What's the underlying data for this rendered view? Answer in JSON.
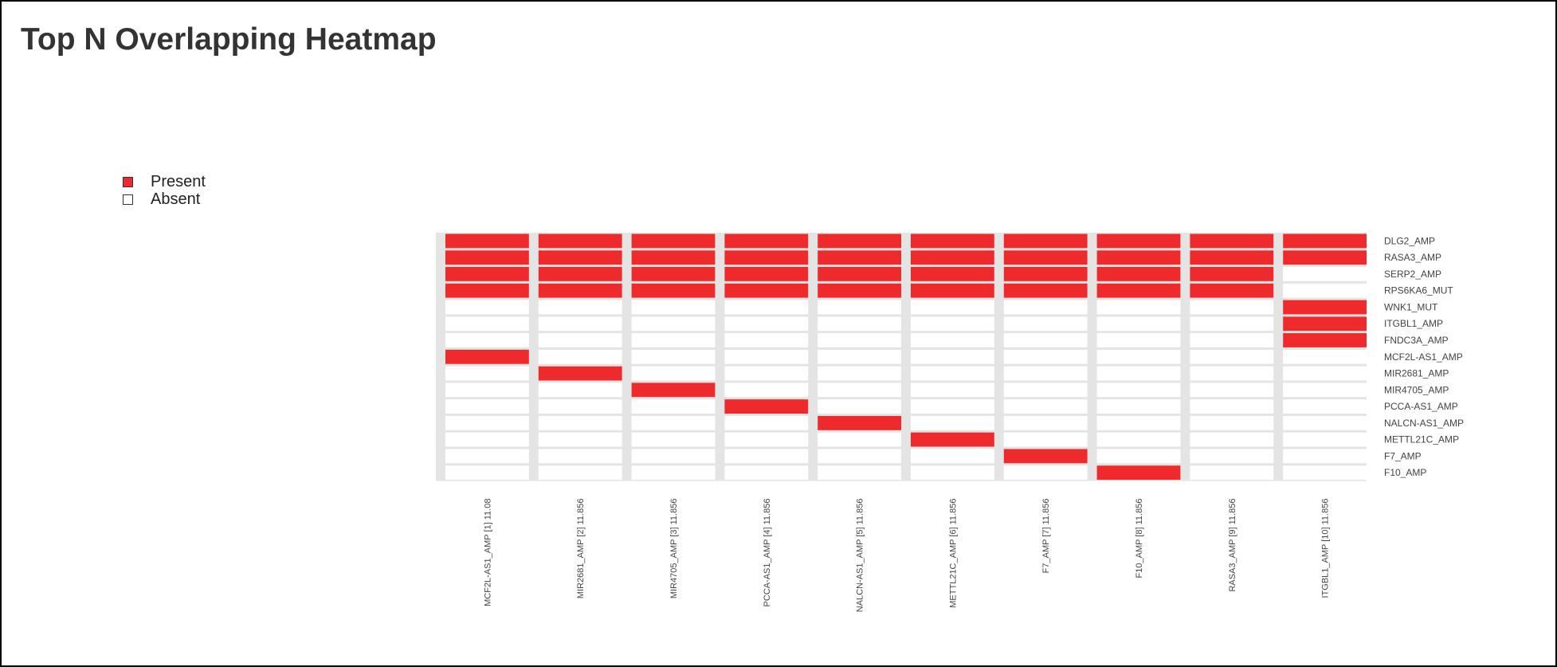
{
  "page": {
    "title": "Top N Overlapping Heatmap"
  },
  "legend": {
    "present_label": "Present",
    "absent_label": "Absent",
    "present_color": "#ee2a2d",
    "absent_color": "#ffffff"
  },
  "chart_data": {
    "type": "heatmap",
    "title": "Top N Overlapping Heatmap",
    "legend_position": "top-left",
    "colors": {
      "present": "#ee2a2d",
      "absent": "#ffffff",
      "separator": "#e4e4e4"
    },
    "columns": [
      "MCF2L-AS1_AMP [1] 11.08",
      "MIR2681_AMP [2] 11.856",
      "MIR4705_AMP [3] 11.856",
      "PCCA-AS1_AMP [4] 11.856",
      "NALCN-AS1_AMP [5] 11.856",
      "METTL21C_AMP [6] 11.856",
      "F7_AMP [7] 11.856",
      "F10_AMP [8] 11.856",
      "RASA3_AMP [9] 11.856",
      "ITGBL1_AMP [10] 11.856"
    ],
    "rows": [
      "DLG2_AMP",
      "RASA3_AMP",
      "SERP2_AMP",
      "RPS6KA6_MUT",
      "WNK1_MUT",
      "ITGBL1_AMP",
      "FNDC3A_AMP",
      "MCF2L-AS1_AMP",
      "MIR2681_AMP",
      "MIR4705_AMP",
      "PCCA-AS1_AMP",
      "NALCN-AS1_AMP",
      "METTL21C_AMP",
      "F7_AMP",
      "F10_AMP"
    ],
    "values": [
      [
        1,
        1,
        1,
        1,
        1,
        1,
        1,
        1,
        1,
        1
      ],
      [
        1,
        1,
        1,
        1,
        1,
        1,
        1,
        1,
        1,
        1
      ],
      [
        1,
        1,
        1,
        1,
        1,
        1,
        1,
        1,
        1,
        0
      ],
      [
        1,
        1,
        1,
        1,
        1,
        1,
        1,
        1,
        1,
        0
      ],
      [
        0,
        0,
        0,
        0,
        0,
        0,
        0,
        0,
        0,
        1
      ],
      [
        0,
        0,
        0,
        0,
        0,
        0,
        0,
        0,
        0,
        1
      ],
      [
        0,
        0,
        0,
        0,
        0,
        0,
        0,
        0,
        0,
        1
      ],
      [
        1,
        0,
        0,
        0,
        0,
        0,
        0,
        0,
        0,
        0
      ],
      [
        0,
        1,
        0,
        0,
        0,
        0,
        0,
        0,
        0,
        0
      ],
      [
        0,
        0,
        1,
        0,
        0,
        0,
        0,
        0,
        0,
        0
      ],
      [
        0,
        0,
        0,
        1,
        0,
        0,
        0,
        0,
        0,
        0
      ],
      [
        0,
        0,
        0,
        0,
        1,
        0,
        0,
        0,
        0,
        0
      ],
      [
        0,
        0,
        0,
        0,
        0,
        1,
        0,
        0,
        0,
        0
      ],
      [
        0,
        0,
        0,
        0,
        0,
        0,
        1,
        0,
        0,
        0
      ],
      [
        0,
        0,
        0,
        0,
        0,
        0,
        0,
        1,
        0,
        0
      ]
    ]
  }
}
